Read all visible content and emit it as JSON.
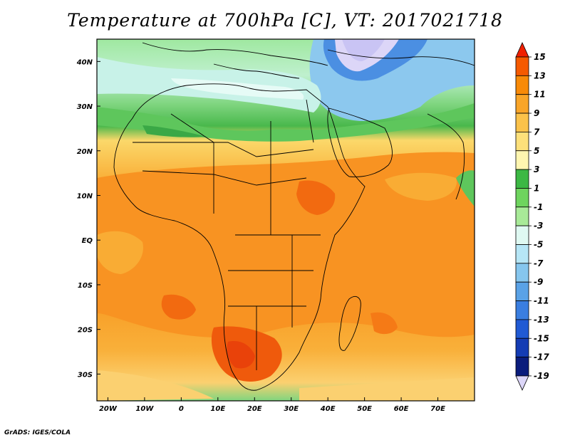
{
  "title": "Temperature at 700hPa [C], VT: 2017021718",
  "footer": "GrADS: IGES/COLA",
  "map": {
    "lon_range": [
      -23,
      80
    ],
    "lat_range": [
      -36,
      45
    ],
    "lon_ticks": [
      {
        "value": -20,
        "label": "20W"
      },
      {
        "value": -10,
        "label": "10W"
      },
      {
        "value": 0,
        "label": "0"
      },
      {
        "value": 10,
        "label": "10E"
      },
      {
        "value": 20,
        "label": "20E"
      },
      {
        "value": 30,
        "label": "30E"
      },
      {
        "value": 40,
        "label": "40E"
      },
      {
        "value": 50,
        "label": "50E"
      },
      {
        "value": 60,
        "label": "60E"
      },
      {
        "value": 70,
        "label": "70E"
      }
    ],
    "lat_ticks": [
      {
        "value": 40,
        "label": "40N"
      },
      {
        "value": 30,
        "label": "30N"
      },
      {
        "value": 20,
        "label": "20N"
      },
      {
        "value": 10,
        "label": "10N"
      },
      {
        "value": 0,
        "label": "EQ"
      },
      {
        "value": -10,
        "label": "10S"
      },
      {
        "value": -20,
        "label": "20S"
      },
      {
        "value": -30,
        "label": "30S"
      }
    ]
  },
  "colorbar": {
    "labels": [
      "15",
      "13",
      "11",
      "9",
      "7",
      "5",
      "3",
      "1",
      "-1",
      "-3",
      "-5",
      "-7",
      "-9",
      "-11",
      "-13",
      "-15",
      "-17",
      "-19"
    ],
    "colors": [
      "#f02000",
      "#f55a00",
      "#f88a08",
      "#f9a528",
      "#fbc24a",
      "#fde07a",
      "#fff6b0",
      "#3cb844",
      "#6ed45e",
      "#a8ea98",
      "#dff9f2",
      "#b6e6f6",
      "#86c6ee",
      "#5aa2e6",
      "#3a7ee0",
      "#205ad4",
      "#143cb4",
      "#0a1c7c",
      "#dcd6f8"
    ]
  }
}
